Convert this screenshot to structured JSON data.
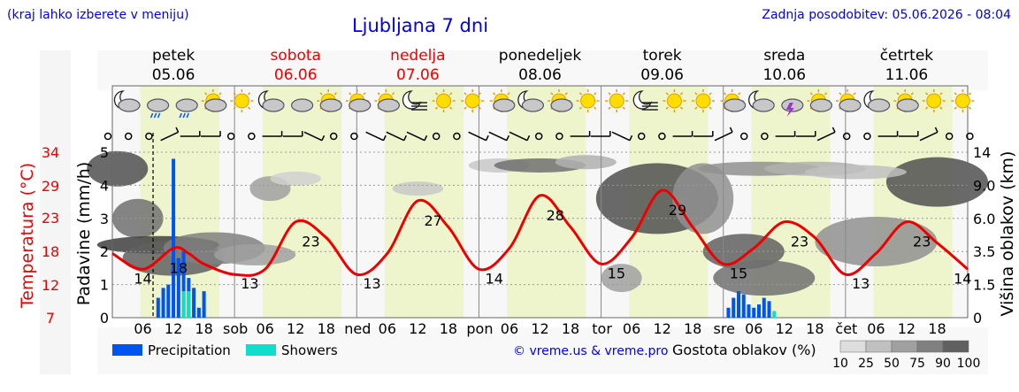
{
  "header": {
    "left_note": "(kraj lahko izberete v meniju)",
    "title": "Ljubljana 7 dni",
    "updated": "Zadnja posodobitev: 05.06.2026 - 08:04"
  },
  "colors": {
    "link_blue": "#0000ee",
    "temperature": "#ee0000",
    "precipitation": "#0055ee",
    "showers": "#11ddcc",
    "daylight": "#eef5cc",
    "night": "#f7f7f7"
  },
  "days": [
    {
      "name": "petek",
      "date": "05.06",
      "weekend": false
    },
    {
      "name": "sobota",
      "date": "06.06",
      "weekend": true
    },
    {
      "name": "nedelja",
      "date": "07.06",
      "weekend": true
    },
    {
      "name": "ponedeljek",
      "date": "08.06",
      "weekend": false
    },
    {
      "name": "torek",
      "date": "09.06",
      "weekend": false
    },
    {
      "name": "sreda",
      "date": "10.06",
      "weekend": false
    },
    {
      "name": "četrtek",
      "date": "11.06",
      "weekend": false
    }
  ],
  "x_axis": {
    "day_abbr": [
      "",
      "sob",
      "ned",
      "pon",
      "tor",
      "sre",
      "čet"
    ],
    "hour_ticks": [
      "06",
      "12",
      "18"
    ]
  },
  "axes": {
    "left_temp_label": "Temperatura (°C)",
    "left_temp_ticks": [
      "34",
      "29",
      "23",
      "18",
      "12",
      "7"
    ],
    "left_precip_label": "Padavine (mm/h)",
    "left_precip_ticks": [
      "5",
      "4",
      "3",
      "2",
      "1",
      "0"
    ],
    "right_label": "Višina oblakov (km)",
    "right_ticks": [
      "14",
      "9.0",
      "6.0",
      "3.5",
      "1.5",
      "0"
    ]
  },
  "legend": {
    "precipitation": "Precipitation",
    "showers": "Showers",
    "credit": "© vreme.us & vreme.pro",
    "cloud_title": "Gostota oblakov (%)",
    "cloud_levels": [
      "10",
      "25",
      "50",
      "75",
      "90",
      "100"
    ],
    "cloud_colors": [
      "#dddddd",
      "#c0c0c0",
      "#a0a0a0",
      "#808080",
      "#606060",
      "#404040"
    ]
  },
  "icons": [
    "moon-cloud",
    "cloud-rain",
    "cloud-rain",
    "sun-cloud",
    "sun",
    "moon-cloud",
    "cloud",
    "sun-cloud",
    "sun-cloud",
    "sun-cloud",
    "moon-fog",
    "sun",
    "sun",
    "sun-cloud",
    "moon-cloud",
    "sun-cloud",
    "sun",
    "sun",
    "moon-fog",
    "sun",
    "sun",
    "sun-cloud",
    "moon-cloud",
    "cloud-thunder",
    "sun-cloud",
    "sun-cloud",
    "moon-cloud",
    "sun-cloud",
    "sun",
    "sun"
  ],
  "chart_data": {
    "type": "line",
    "x_unit": "hour from 05.06 00:00",
    "temperature": {
      "name": "Temperatura",
      "x": [
        0,
        6,
        12,
        15,
        18,
        24,
        30,
        36,
        42,
        48,
        54,
        60,
        66,
        72,
        78,
        84,
        90,
        96,
        102,
        108,
        114,
        120,
        126,
        132,
        138,
        144,
        150,
        156,
        162,
        168
      ],
      "values": [
        17,
        14,
        18,
        17,
        15,
        13,
        14,
        23,
        20,
        13,
        17,
        27,
        22,
        14,
        18,
        28,
        22,
        15,
        20,
        29,
        22,
        15,
        18,
        23,
        20,
        13,
        17,
        23,
        19,
        14
      ]
    },
    "temperature_labels": [
      {
        "x": 6,
        "value": "14"
      },
      {
        "x": 13,
        "value": "18"
      },
      {
        "x": 27,
        "value": "13"
      },
      {
        "x": 39,
        "value": "23"
      },
      {
        "x": 51,
        "value": "13"
      },
      {
        "x": 63,
        "value": "27"
      },
      {
        "x": 75,
        "value": "14"
      },
      {
        "x": 87,
        "value": "28"
      },
      {
        "x": 99,
        "value": "15"
      },
      {
        "x": 111,
        "value": "29"
      },
      {
        "x": 123,
        "value": "15"
      },
      {
        "x": 135,
        "value": "23"
      },
      {
        "x": 147,
        "value": "13"
      },
      {
        "x": 159,
        "value": "23"
      },
      {
        "x": 167,
        "value": "14"
      }
    ],
    "precipitation": {
      "name": "Precipitation",
      "x": [
        9,
        10,
        11,
        12,
        13,
        14,
        15,
        16,
        17,
        18,
        121,
        122,
        123,
        124,
        125,
        126,
        127,
        128,
        129
      ],
      "values": [
        0.6,
        0.9,
        1.0,
        4.8,
        1.8,
        2.0,
        1.2,
        0.9,
        0.3,
        0.8,
        0.3,
        0.6,
        0.8,
        0.7,
        0.4,
        0.3,
        0.4,
        0.6,
        0.5
      ]
    },
    "showers": {
      "name": "Showers",
      "x": [
        14,
        15,
        130
      ],
      "values": [
        0.8,
        0.8,
        0.2
      ]
    },
    "precip_ylim": [
      0,
      5
    ],
    "current_time_hour": 8
  }
}
